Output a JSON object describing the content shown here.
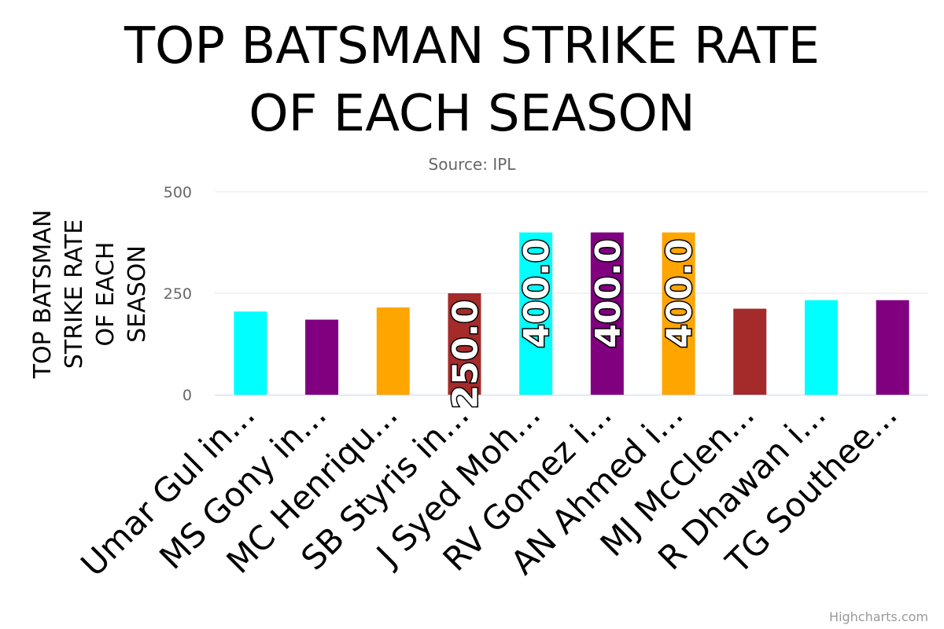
{
  "chart_data": {
    "type": "bar",
    "title": "TOP BATSMAN STRIKE RATE OF EACH SEASON",
    "title_lines": [
      "TOP BATSMAN STRIKE RATE",
      "OF EACH SEASON"
    ],
    "subtitle": "Source: IPL",
    "ylabel": "TOP BATSMAN STRIKE RATE OF EACH SEASON",
    "ylabel_lines": [
      "TOP BATSMAN",
      "STRIKE RATE",
      "OF EACH",
      "SEASON"
    ],
    "ylim": [
      0,
      500
    ],
    "yticks": [
      "0",
      "250",
      "500"
    ],
    "grid": true,
    "legend": "none",
    "categories": [
      "Umar Gul in...",
      "MS Gony in...",
      "MC Henriqu...",
      "SB Styris in...",
      "J Syed Moh...",
      "RV Gomez i...",
      "AN Ahmed i...",
      "MJ McClen...",
      "R Dhawan i...",
      "TG Southee..."
    ],
    "values": [
      205,
      185,
      215,
      250,
      400,
      400,
      400,
      212,
      233,
      233
    ],
    "colors": [
      "#00ffff",
      "#800080",
      "#ffa500",
      "#a52a2a",
      "#00ffff",
      "#800080",
      "#ffa500",
      "#a52a2a",
      "#00ffff",
      "#800080"
    ],
    "data_labels": [
      "",
      "",
      "",
      "250.0",
      "400.0",
      "400.0",
      "400.0",
      "",
      "",
      ""
    ]
  },
  "credits": "Highcharts.com"
}
